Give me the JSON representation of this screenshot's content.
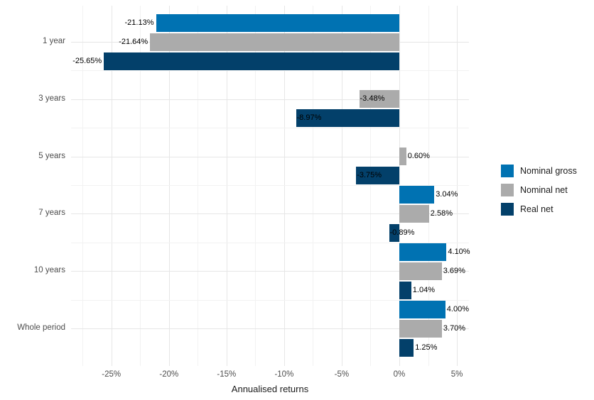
{
  "chart_data": {
    "type": "bar",
    "orientation": "horizontal",
    "title": "",
    "xlabel": "Annualised returns",
    "ylabel": "",
    "categories": [
      "1 year",
      "3 years",
      "5 years",
      "7 years",
      "10 years",
      "Whole period"
    ],
    "series": [
      {
        "name": "Nominal gross",
        "color": "#0072B2",
        "values": [
          -21.13,
          null,
          null,
          3.04,
          4.1,
          4.0
        ],
        "labels": [
          "-21.13%",
          "",
          "",
          "3.04%",
          "4.10%",
          "4.00%"
        ]
      },
      {
        "name": "Nominal net",
        "color": "#ABABAB",
        "values": [
          -21.64,
          -3.48,
          0.6,
          2.58,
          3.69,
          3.7
        ],
        "labels": [
          "-21.64%",
          "-3.48%",
          "0.60%",
          "2.58%",
          "3.69%",
          "3.70%"
        ]
      },
      {
        "name": "Real net",
        "color": "#03406A",
        "values": [
          -25.65,
          -8.97,
          -3.75,
          -0.89,
          1.04,
          1.25
        ],
        "labels": [
          "-25.65%",
          "-8.97%",
          "-3.75%",
          "-0.89%",
          "1.04%",
          "1.25%"
        ]
      }
    ],
    "x_axis": {
      "tick_labels": [
        "-25%",
        "-20%",
        "-15%",
        "-10%",
        "-5%",
        "0%",
        "5%"
      ],
      "tick_values": [
        -25,
        -20,
        -15,
        -10,
        -5,
        0,
        5
      ],
      "min": -28.5,
      "max": 6.05,
      "minor_step": 2.5
    },
    "legend": {
      "position": "right",
      "entries": [
        "Nominal gross",
        "Nominal net",
        "Real net"
      ]
    },
    "grid": true,
    "background": "#FFFFFF"
  }
}
